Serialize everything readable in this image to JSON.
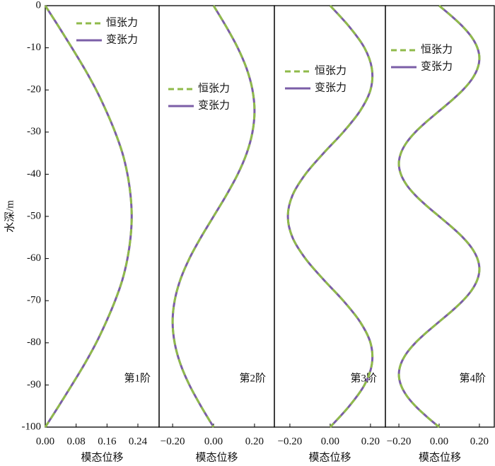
{
  "chart_data": [
    {
      "type": "line",
      "ylabel": "水深/m",
      "panel_label": "第1阶",
      "xlabel": "模态位移",
      "xlim": [
        0,
        0.295
      ],
      "xticks": [
        {
          "value": 0,
          "label": "0.00"
        },
        0.08,
        0.16,
        0.24
      ],
      "ylim": [
        -100,
        0
      ],
      "yticks": [
        0,
        -10,
        -20,
        -30,
        -40,
        -50,
        -60,
        -70,
        -80,
        -90,
        -100
      ],
      "y": [
        0,
        -5,
        -10,
        -15,
        -20,
        -25,
        -30,
        -35,
        -40,
        -45,
        -50,
        -55,
        -60,
        -65,
        -70,
        -75,
        -80,
        -85,
        -90,
        -95,
        -100
      ],
      "series": [
        {
          "name": "恒张力",
          "color": "#8fba4a",
          "dashed": true,
          "values": [
            0,
            0.035,
            0.069,
            0.102,
            0.132,
            0.158,
            0.181,
            0.2,
            0.213,
            0.221,
            0.224,
            0.221,
            0.213,
            0.2,
            0.181,
            0.158,
            0.132,
            0.102,
            0.069,
            0.035,
            0
          ]
        },
        {
          "name": "变张力",
          "color": "#7b5ea7",
          "dashed": false,
          "values": [
            0,
            0.035,
            0.069,
            0.102,
            0.132,
            0.158,
            0.181,
            0.2,
            0.213,
            0.221,
            0.224,
            0.221,
            0.213,
            0.2,
            0.181,
            0.158,
            0.132,
            0.102,
            0.069,
            0.035,
            0
          ]
        }
      ]
    },
    {
      "type": "line",
      "panel_label": "第2阶",
      "xlabel": "模态位移",
      "xlim": [
        -0.266,
        0.297
      ],
      "xticks": [
        {
          "value": -0.2,
          "label": "−0.20"
        },
        {
          "value": 0,
          "label": "0.00"
        },
        {
          "value": 0.2,
          "label": "0.20"
        }
      ],
      "ylim": [
        -100,
        0
      ],
      "y": [
        0,
        -5,
        -10,
        -15,
        -20,
        -25,
        -30,
        -35,
        -40,
        -45,
        -50,
        -55,
        -60,
        -65,
        -70,
        -75,
        -80,
        -85,
        -90,
        -95,
        -100
      ],
      "series": [
        {
          "name": "恒张力",
          "color": "#8fba4a",
          "dashed": true,
          "values": [
            0,
            0.062,
            0.118,
            0.162,
            0.19,
            0.2,
            0.19,
            0.162,
            0.118,
            0.062,
            0,
            -0.062,
            -0.118,
            -0.162,
            -0.19,
            -0.2,
            -0.19,
            -0.162,
            -0.118,
            -0.062,
            0
          ]
        },
        {
          "name": "变张力",
          "color": "#7b5ea7",
          "dashed": false,
          "values": [
            0,
            0.062,
            0.118,
            0.162,
            0.19,
            0.2,
            0.19,
            0.162,
            0.118,
            0.062,
            0,
            -0.062,
            -0.118,
            -0.162,
            -0.19,
            -0.2,
            -0.19,
            -0.162,
            -0.118,
            -0.062,
            0
          ]
        }
      ]
    },
    {
      "type": "line",
      "panel_label": "第3阶",
      "xlabel": "模态位移",
      "xlim": [
        -0.277,
        0.274
      ],
      "xticks": [
        {
          "value": -0.2,
          "label": "−0.20"
        },
        {
          "value": 0,
          "label": "0.00"
        },
        {
          "value": 0.2,
          "label": "0.20"
        }
      ],
      "ylim": [
        -100,
        0
      ],
      "y": [
        0,
        -5,
        -10,
        -15,
        -20,
        -25,
        -30,
        -35,
        -40,
        -45,
        -50,
        -55,
        -60,
        -65,
        -70,
        -75,
        -80,
        -85,
        -90,
        -95,
        -100
      ],
      "series": [
        {
          "name": "恒张力",
          "color": "#8fba4a",
          "dashed": true,
          "values": [
            0,
            0.095,
            0.17,
            0.207,
            0.2,
            0.148,
            0.065,
            -0.033,
            -0.123,
            -0.187,
            -0.21,
            -0.187,
            -0.123,
            -0.033,
            0.065,
            0.148,
            0.2,
            0.207,
            0.17,
            0.095,
            0
          ]
        },
        {
          "name": "变张力",
          "color": "#7b5ea7",
          "dashed": false,
          "values": [
            0,
            0.095,
            0.17,
            0.207,
            0.2,
            0.148,
            0.065,
            -0.033,
            -0.123,
            -0.187,
            -0.21,
            -0.187,
            -0.123,
            -0.033,
            0.065,
            0.148,
            0.2,
            0.207,
            0.17,
            0.095,
            0
          ]
        }
      ]
    },
    {
      "type": "line",
      "panel_label": "第4阶",
      "xlabel": "模态位移",
      "xlim": [
        -0.267,
        0.274
      ],
      "xticks": [
        {
          "value": -0.2,
          "label": "−0.20"
        },
        {
          "value": 0,
          "label": "0.00"
        },
        {
          "value": 0.2,
          "label": "0.20"
        }
      ],
      "ylim": [
        -100,
        0
      ],
      "y": [
        0,
        -2.5,
        -5,
        -7.5,
        -10,
        -12.5,
        -15,
        -17.5,
        -20,
        -22.5,
        -25,
        -27.5,
        -30,
        -32.5,
        -35,
        -37.5,
        -40,
        -42.5,
        -45,
        -47.5,
        -50,
        -52.5,
        -55,
        -57.5,
        -60,
        -62.5,
        -65,
        -67.5,
        -70,
        -72.5,
        -75,
        -77.5,
        -80,
        -82.5,
        -85,
        -87.5,
        -90,
        -92.5,
        -95,
        -97.5,
        -100
      ],
      "series": [
        {
          "name": "恒张力",
          "color": "#8fba4a",
          "dashed": true,
          "values": [
            0,
            0.062,
            0.118,
            0.162,
            0.19,
            0.2,
            0.19,
            0.162,
            0.118,
            0.062,
            0,
            -0.062,
            -0.118,
            -0.162,
            -0.19,
            -0.2,
            -0.19,
            -0.162,
            -0.118,
            -0.062,
            0,
            0.062,
            0.118,
            0.162,
            0.19,
            0.2,
            0.19,
            0.162,
            0.118,
            0.062,
            0,
            -0.062,
            -0.118,
            -0.162,
            -0.19,
            -0.2,
            -0.19,
            -0.162,
            -0.118,
            -0.062,
            0
          ]
        },
        {
          "name": "变张力",
          "color": "#7b5ea7",
          "dashed": false,
          "values": [
            0,
            0.062,
            0.118,
            0.162,
            0.19,
            0.2,
            0.19,
            0.162,
            0.118,
            0.062,
            0,
            -0.062,
            -0.118,
            -0.162,
            -0.19,
            -0.2,
            -0.19,
            -0.162,
            -0.118,
            -0.062,
            0,
            0.062,
            0.118,
            0.162,
            0.19,
            0.2,
            0.19,
            0.162,
            0.118,
            0.062,
            0,
            -0.062,
            -0.118,
            -0.162,
            -0.19,
            -0.2,
            -0.19,
            -0.162,
            -0.118,
            -0.062,
            0
          ]
        }
      ]
    }
  ]
}
